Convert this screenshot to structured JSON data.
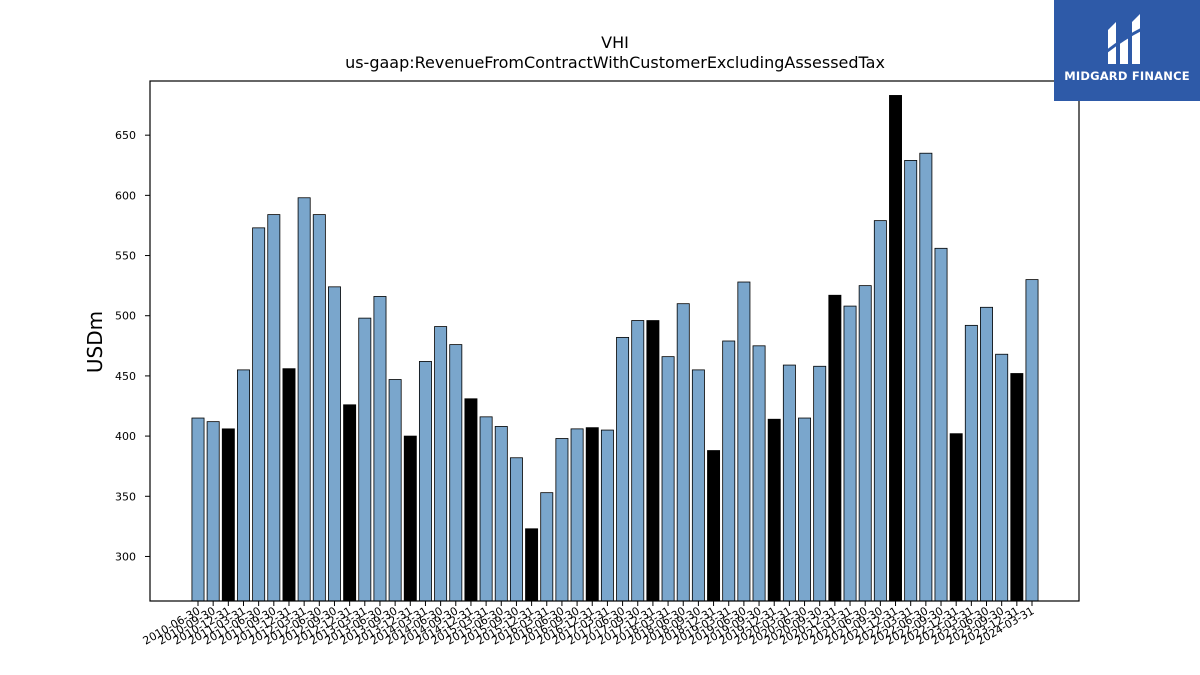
{
  "brand": {
    "name": "MIDGARD FINANCE",
    "color": "#2e5aa8"
  },
  "chart_data": {
    "type": "bar",
    "title": "VHI",
    "subtitle": "us-gaap:RevenueFromContractWithCustomerExcludingAssessedTax",
    "xlabel": "",
    "ylabel": "USDm",
    "ylim": [
      263,
      695
    ],
    "yticks": [
      300,
      350,
      400,
      450,
      500,
      550,
      600,
      650
    ],
    "grid": false,
    "bar_color": "#7aa6cc",
    "highlight_color": "#000000",
    "highlight_rule": "Q4 (annual) periods drawn in black",
    "categories": [
      "2010-06-30",
      "2010-09-30",
      "2010-12-31",
      "2011-03-31",
      "2011-06-30",
      "2011-09-30",
      "2011-12-31",
      "2012-03-31",
      "2012-06-30",
      "2012-09-30",
      "2012-12-31",
      "2013-03-31",
      "2013-06-30",
      "2013-09-30",
      "2013-12-31",
      "2014-03-31",
      "2014-06-30",
      "2014-09-30",
      "2014-12-31",
      "2015-03-31",
      "2015-06-30",
      "2015-09-30",
      "2015-12-31",
      "2016-03-31",
      "2016-06-30",
      "2016-09-30",
      "2016-12-31",
      "2017-03-31",
      "2017-06-30",
      "2017-09-30",
      "2017-12-31",
      "2018-03-31",
      "2018-06-30",
      "2018-09-30",
      "2018-12-31",
      "2019-03-31",
      "2019-06-30",
      "2019-09-30",
      "2019-12-31",
      "2020-03-31",
      "2020-06-30",
      "2020-09-30",
      "2020-12-31",
      "2021-03-31",
      "2021-06-30",
      "2021-09-30",
      "2021-12-31",
      "2022-03-31",
      "2022-06-30",
      "2022-09-30",
      "2022-12-31",
      "2023-03-31",
      "2023-06-30",
      "2023-09-30",
      "2023-12-31",
      "2024-03-31"
    ],
    "values": [
      415,
      412,
      406,
      455,
      573,
      584,
      456,
      598,
      584,
      524,
      426,
      498,
      516,
      447,
      400,
      462,
      491,
      476,
      431,
      416,
      408,
      382,
      323,
      353,
      398,
      406,
      407,
      405,
      482,
      496,
      496,
      466,
      510,
      455,
      388,
      479,
      528,
      475,
      414,
      459,
      415,
      458,
      517,
      508,
      525,
      579,
      683,
      629,
      635,
      556,
      402,
      492,
      507,
      468,
      452,
      530
    ],
    "highlighted": [
      false,
      false,
      true,
      false,
      false,
      false,
      true,
      false,
      false,
      false,
      true,
      false,
      false,
      false,
      true,
      false,
      false,
      false,
      true,
      false,
      false,
      false,
      true,
      false,
      false,
      false,
      true,
      false,
      false,
      false,
      true,
      false,
      false,
      false,
      true,
      false,
      false,
      false,
      true,
      false,
      false,
      false,
      true,
      false,
      false,
      false,
      true,
      false,
      false,
      false,
      true,
      false,
      false,
      false,
      true,
      false
    ]
  }
}
